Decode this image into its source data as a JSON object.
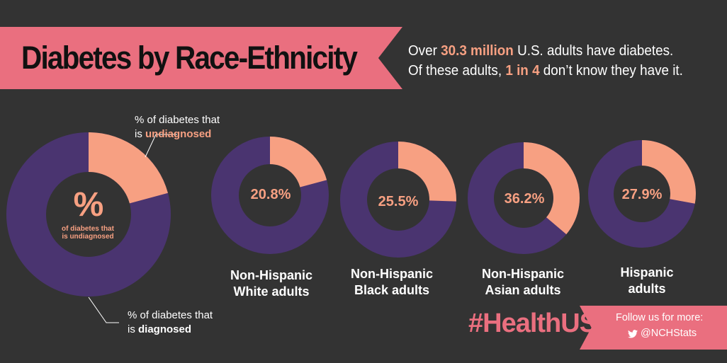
{
  "header": {
    "title": "Diabetes by Race-Ethnicity",
    "intro_line1_pre": "Over ",
    "intro_line1_hl": "30.3 million",
    "intro_line1_post": " U.S. adults have diabetes.",
    "intro_line2_pre": "Of these adults, ",
    "intro_line2_hl": "1 in 4",
    "intro_line2_post": " don’t know they have it."
  },
  "legend": {
    "undiagnosed_line1": "% of diabetes that",
    "undiagnosed_pre": "is ",
    "undiagnosed_word": "undiagnosed",
    "diagnosed_line1": "% of diabetes that",
    "diagnosed_pre": "is ",
    "diagnosed_word": "diagnosed",
    "center_symbol": "%",
    "center_sub_line1": "of diabetes that",
    "center_sub_line2": "is undiagnosed"
  },
  "colors": {
    "background": "#333333",
    "undiagnosed": "#f7a082",
    "diagnosed": "#4a3470",
    "accent": "#ea6f7f"
  },
  "chart_data": {
    "type": "pie",
    "style": "donut",
    "unit": "%",
    "categories": [
      "Non-Hispanic White adults",
      "Non-Hispanic Black adults",
      "Non-Hispanic Asian adults",
      "Hispanic adults"
    ],
    "series": [
      {
        "name": "undiagnosed",
        "values": [
          20.8,
          25.5,
          36.2,
          27.9
        ]
      }
    ],
    "value_labels": [
      "20.8%",
      "25.5%",
      "36.2%",
      "27.9%"
    ],
    "category_labels": [
      [
        "Non-Hispanic",
        "White adults"
      ],
      [
        "Non-Hispanic",
        "Black adults"
      ],
      [
        "Non-Hispanic",
        "Asian adults"
      ],
      [
        "Hispanic",
        "adults"
      ]
    ],
    "legend_example_value": 20.8
  },
  "footer": {
    "hashtag": "#HealthUS",
    "follow_text": "Follow us for more:",
    "handle": "@NCHStats",
    "handle_icon": "twitter-bird-icon"
  }
}
